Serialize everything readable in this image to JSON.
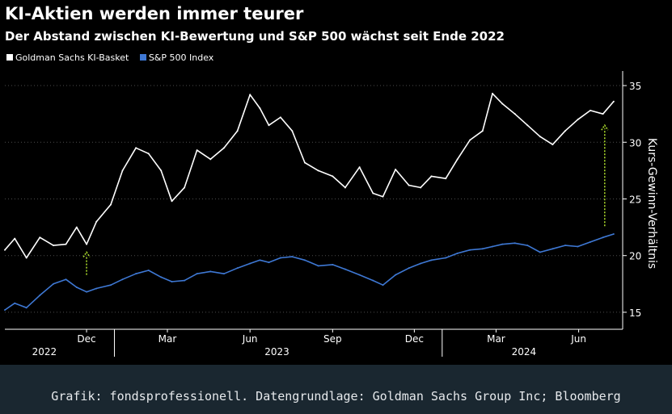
{
  "title": "KI-Aktien werden immer teurer",
  "subtitle": "Der Abstand zwischen KI-Bewertung und S&P 500 wächst seit Ende 2022",
  "source": "Grafik: fondsprofessionell. Datengrundlage: Goldman Sachs Group Inc; Bloomberg",
  "colors": {
    "background": "#000000",
    "page": "#1a2730",
    "basket": "#ffffff",
    "sp500": "#3e78d4",
    "arrow": "#a8d62b",
    "gridline": "#4d4d4d"
  },
  "chart_data": {
    "type": "line",
    "title": "KI-Aktien werden immer teurer",
    "subtitle": "Der Abstand zwischen KI-Bewertung und S&P 500 wächst seit Ende 2022",
    "xlabel": "",
    "ylabel": "Kurs-Gewinn-Verhältnis",
    "xlim": [
      "2022-09-01",
      "2024-07-20"
    ],
    "ylim": [
      13.5,
      36
    ],
    "yticks": [
      15,
      20,
      25,
      30,
      35
    ],
    "grid": "horizontal dotted",
    "legend_position": "top-left",
    "x_ticks": [
      {
        "date": "2022-12-01",
        "label": "Dec"
      },
      {
        "date": "2023-03-01",
        "label": "Mar"
      },
      {
        "date": "2023-06-01",
        "label": "Jun"
      },
      {
        "date": "2023-09-01",
        "label": "Sep"
      },
      {
        "date": "2023-12-01",
        "label": "Dec"
      },
      {
        "date": "2024-03-01",
        "label": "Mar"
      },
      {
        "date": "2024-06-01",
        "label": "Jun"
      }
    ],
    "year_labels": [
      {
        "date": "2022-10-15",
        "label": "2022"
      },
      {
        "date": "2023-07-01",
        "label": "2023"
      },
      {
        "date": "2024-04-01",
        "label": "2024"
      }
    ],
    "year_separators": [
      "2023-01-01",
      "2024-01-01"
    ],
    "series": [
      {
        "name": "Goldman Sachs KI-Basket",
        "color": "#ffffff",
        "x": [
          "2022-09-01",
          "2022-09-12",
          "2022-09-25",
          "2022-10-10",
          "2022-10-25",
          "2022-11-08",
          "2022-11-20",
          "2022-12-01",
          "2022-12-12",
          "2022-12-28",
          "2023-01-10",
          "2023-01-25",
          "2023-02-08",
          "2023-02-22",
          "2023-03-06",
          "2023-03-20",
          "2023-04-03",
          "2023-04-18",
          "2023-05-03",
          "2023-05-18",
          "2023-06-01",
          "2023-06-12",
          "2023-06-22",
          "2023-07-05",
          "2023-07-18",
          "2023-08-01",
          "2023-08-16",
          "2023-09-01",
          "2023-09-15",
          "2023-10-01",
          "2023-10-16",
          "2023-10-27",
          "2023-11-10",
          "2023-11-25",
          "2023-12-08",
          "2023-12-20",
          "2024-01-05",
          "2024-01-18",
          "2024-02-01",
          "2024-02-15",
          "2024-02-26",
          "2024-03-08",
          "2024-03-22",
          "2024-04-05",
          "2024-04-19",
          "2024-05-03",
          "2024-05-17",
          "2024-05-31",
          "2024-06-14",
          "2024-06-28",
          "2024-07-10"
        ],
        "values": [
          20.5,
          21.5,
          19.8,
          21.6,
          20.9,
          21.0,
          22.5,
          21.0,
          23.0,
          24.5,
          27.5,
          29.5,
          29.0,
          27.5,
          24.8,
          26.0,
          29.3,
          28.5,
          29.5,
          31.0,
          34.2,
          33.0,
          31.5,
          32.2,
          31.0,
          28.2,
          27.5,
          27.0,
          26.0,
          27.8,
          25.5,
          25.2,
          27.6,
          26.2,
          26.0,
          27.0,
          26.8,
          28.5,
          30.2,
          31.0,
          34.3,
          33.4,
          32.5,
          31.5,
          30.5,
          29.8,
          31.0,
          32.0,
          32.8,
          32.5,
          33.6
        ]
      },
      {
        "name": "S&P 500 Index",
        "color": "#3e78d4",
        "x": [
          "2022-09-01",
          "2022-09-12",
          "2022-09-25",
          "2022-10-10",
          "2022-10-25",
          "2022-11-08",
          "2022-11-20",
          "2022-12-01",
          "2022-12-12",
          "2022-12-28",
          "2023-01-10",
          "2023-01-25",
          "2023-02-08",
          "2023-02-22",
          "2023-03-06",
          "2023-03-20",
          "2023-04-03",
          "2023-04-18",
          "2023-05-03",
          "2023-05-18",
          "2023-06-01",
          "2023-06-12",
          "2023-06-22",
          "2023-07-05",
          "2023-07-18",
          "2023-08-01",
          "2023-08-16",
          "2023-09-01",
          "2023-09-15",
          "2023-10-01",
          "2023-10-16",
          "2023-10-27",
          "2023-11-10",
          "2023-11-25",
          "2023-12-08",
          "2023-12-20",
          "2024-01-05",
          "2024-01-18",
          "2024-02-01",
          "2024-02-15",
          "2024-02-26",
          "2024-03-08",
          "2024-03-22",
          "2024-04-05",
          "2024-04-19",
          "2024-05-03",
          "2024-05-17",
          "2024-05-31",
          "2024-06-14",
          "2024-06-28",
          "2024-07-10"
        ],
        "values": [
          15.2,
          15.8,
          15.4,
          16.5,
          17.5,
          17.9,
          17.2,
          16.8,
          17.1,
          17.4,
          17.9,
          18.4,
          18.7,
          18.1,
          17.7,
          17.8,
          18.4,
          18.6,
          18.4,
          18.9,
          19.3,
          19.6,
          19.4,
          19.8,
          19.9,
          19.6,
          19.1,
          19.2,
          18.8,
          18.3,
          17.8,
          17.4,
          18.3,
          18.9,
          19.3,
          19.6,
          19.8,
          20.2,
          20.5,
          20.6,
          20.8,
          21.0,
          21.1,
          20.9,
          20.3,
          20.6,
          20.9,
          20.8,
          21.2,
          21.6,
          21.9
        ]
      }
    ],
    "annotations": [
      {
        "type": "arrow",
        "date": "2022-12-01",
        "from": 18.3,
        "to": 20.3
      },
      {
        "type": "arrow",
        "date": "2024-06-30",
        "from": 22.6,
        "to": 31.5
      }
    ]
  }
}
